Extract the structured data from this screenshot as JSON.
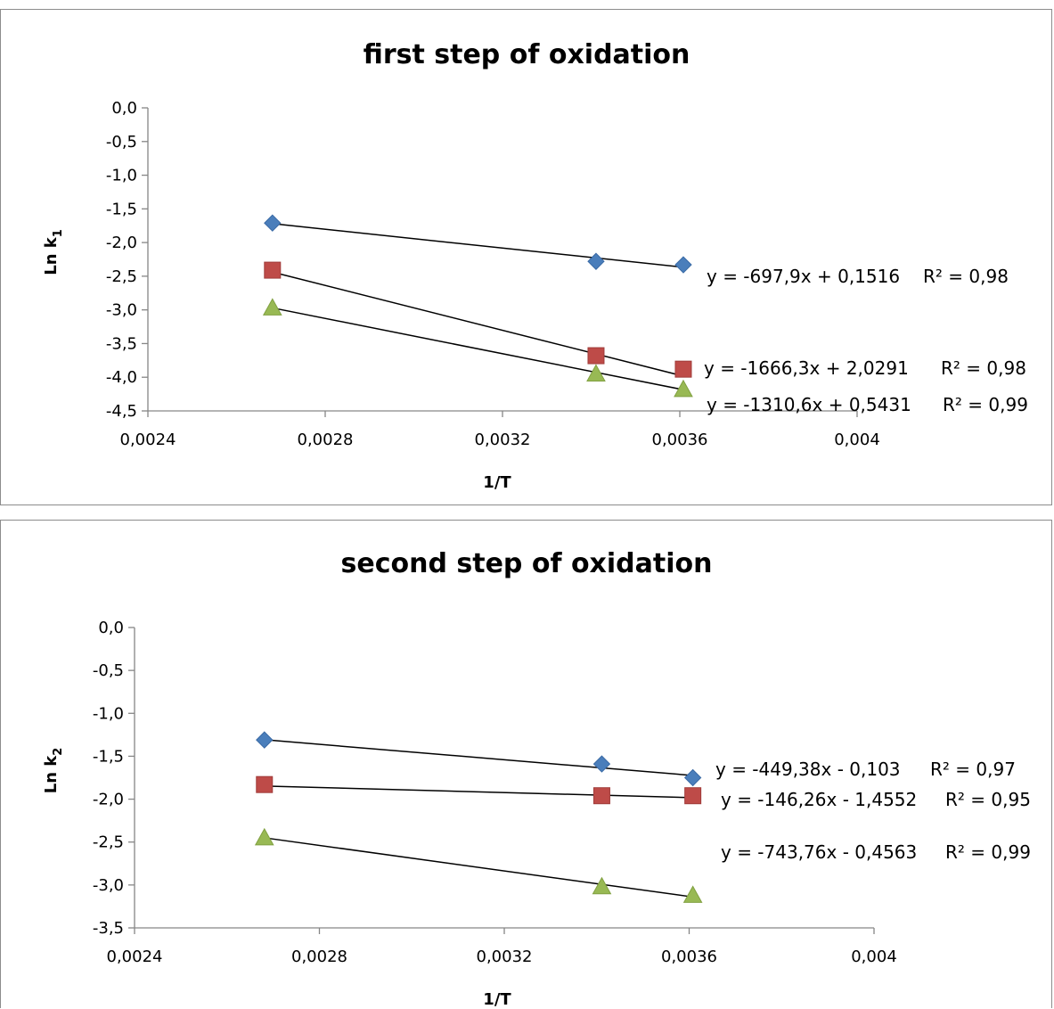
{
  "chart_data": [
    {
      "type": "scatter",
      "title": "first step of oxidation",
      "xlabel": "1/T",
      "ylabel_main": "Ln k",
      "ylabel_sub": "1",
      "xlim": [
        0.0024,
        0.004
      ],
      "ylim": [
        -4.5,
        0.0
      ],
      "x_ticks": [
        0.0024,
        0.0028,
        0.0032,
        0.0036,
        0.004
      ],
      "x_tick_labels": [
        "0,0024",
        "0,0028",
        "0,0032",
        "0,0036",
        "0,004"
      ],
      "y_ticks": [
        0.0,
        -0.5,
        -1.0,
        -1.5,
        -2.0,
        -2.5,
        -3.0,
        -3.5,
        -4.0,
        -4.5
      ],
      "y_tick_labels": [
        "0,0",
        "-0,5",
        "-1,0",
        "-1,5",
        "-2,0",
        "-2,5",
        "-3,0",
        "-3,5",
        "-4,0",
        "-4,5"
      ],
      "grid": false,
      "series": [
        {
          "marker": "diamond",
          "color": "#4a7ebb",
          "x": [
            0.002681,
            0.003411,
            0.003608
          ],
          "y": [
            -1.71,
            -2.28,
            -2.33
          ],
          "trend": {
            "slope": -697.9,
            "intercept": 0.1516
          },
          "equation": "y = -697,9x + 0,1516",
          "r2": "R² = 0,98"
        },
        {
          "marker": "square",
          "color": "#be4b48",
          "x": [
            0.002681,
            0.003411,
            0.003608
          ],
          "y": [
            -2.41,
            -3.68,
            -3.88
          ],
          "trend": {
            "slope": -1666.3,
            "intercept": 2.0291
          },
          "equation": "y = -1666,3x + 2,0291",
          "r2": "R² = 0,98"
        },
        {
          "marker": "triangle",
          "color": "#98b954",
          "x": [
            0.002681,
            0.003411,
            0.003608
          ],
          "y": [
            -2.97,
            -3.95,
            -4.18
          ],
          "trend": {
            "slope": -1310.6,
            "intercept": 0.5431
          },
          "equation": "y = -1310,6x + 0,5431",
          "r2": "R² = 0,99"
        }
      ]
    },
    {
      "type": "scatter",
      "title": "second step of oxidation",
      "xlabel": "1/T",
      "ylabel_main": "Ln k",
      "ylabel_sub": "2",
      "xlim": [
        0.0024,
        0.004
      ],
      "ylim": [
        -3.5,
        0.0
      ],
      "x_ticks": [
        0.0024,
        0.0028,
        0.0032,
        0.0036,
        0.004
      ],
      "x_tick_labels": [
        "0,0024",
        "0,0028",
        "0,0032",
        "0,0036",
        "0,004"
      ],
      "y_ticks": [
        0.0,
        -0.5,
        -1.0,
        -1.5,
        -2.0,
        -2.5,
        -3.0,
        -3.5
      ],
      "y_tick_labels": [
        "0,0",
        "-0,5",
        "-1,0",
        "-1,5",
        "-2,0",
        "-2,5",
        "-3,0",
        "-3,5"
      ],
      "grid": false,
      "series": [
        {
          "marker": "diamond",
          "color": "#4a7ebb",
          "x": [
            0.002681,
            0.003411,
            0.003608
          ],
          "y": [
            -1.31,
            -1.59,
            -1.75
          ],
          "trend": {
            "slope": -449.38,
            "intercept": -0.103
          },
          "equation": "y = -449,38x - 0,103",
          "r2": "R² = 0,97"
        },
        {
          "marker": "square",
          "color": "#be4b48",
          "x": [
            0.002681,
            0.003411,
            0.003608
          ],
          "y": [
            -1.83,
            -1.96,
            -1.96
          ],
          "trend": {
            "slope": -146.26,
            "intercept": -1.4552
          },
          "equation": "y = -146,26x - 1,4552",
          "r2": "R² = 0,95"
        },
        {
          "marker": "triangle",
          "color": "#98b954",
          "x": [
            0.002681,
            0.003411,
            0.003608
          ],
          "y": [
            -2.45,
            -3.02,
            -3.12
          ],
          "trend": {
            "slope": -743.76,
            "intercept": -0.4563
          },
          "equation": "y = -743,76x - 0,4563",
          "r2": "R² = 0,99"
        }
      ]
    }
  ]
}
